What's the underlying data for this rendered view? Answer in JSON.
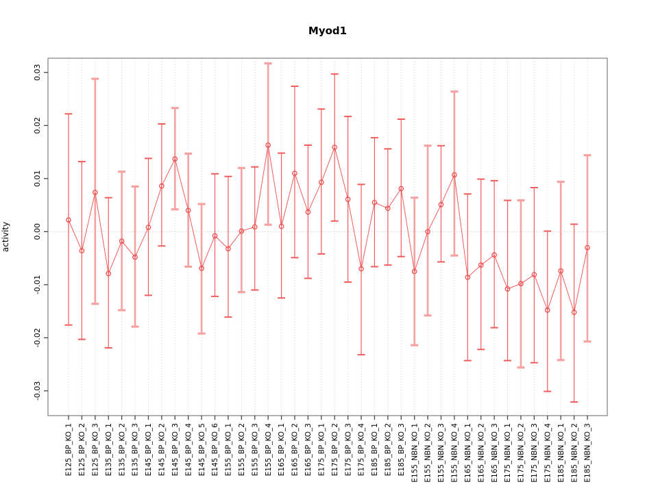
{
  "title": "Myod1",
  "y_axis_label": "activity",
  "chart_data": {
    "type": "line",
    "title": "Myod1",
    "xlabel": "",
    "ylabel": "activity",
    "ylim": [
      -0.0345,
      0.0327
    ],
    "yticks": [
      0.03,
      0.02,
      0.01,
      0.0,
      -0.01,
      -0.02,
      -0.03
    ],
    "ytick_labels": [
      "0.03",
      "0.02",
      "0.01",
      "0.00",
      "-0.01",
      "-0.02",
      "-0.03"
    ],
    "grid": "dotted vertical line at every category; dotted horizontal line at y=0 only",
    "legend_position": "none",
    "marker": "open-circle",
    "categories": [
      "E125_BP_KO_1",
      "E125_BP_KO_2",
      "E125_BP_KO_3",
      "E135_BP_KO_1",
      "E135_BP_KO_2",
      "E135_BP_KO_3",
      "E145_BP_KO_1",
      "E145_BP_KO_2",
      "E145_BP_KO_3",
      "E145_BP_KO_4",
      "E145_BP_KO_5",
      "E145_BP_KO_6",
      "E155_BP_KO_1",
      "E155_BP_KO_2",
      "E155_BP_KO_3",
      "E155_BP_KO_4",
      "E165_BP_KO_1",
      "E165_BP_KO_2",
      "E165_BP_KO_3",
      "E175_BP_KO_1",
      "E175_BP_KO_2",
      "E175_BP_KO_3",
      "E175_BP_KO_4",
      "E185_BP_KO_1",
      "E185_BP_KO_2",
      "E185_BP_KO_3",
      "E155_NBN_KO_1",
      "E155_NBN_KO_2",
      "E155_NBN_KO_3",
      "E155_NBN_KO_4",
      "E165_NBN_KO_1",
      "E165_NBN_KO_2",
      "E165_NBN_KO_3",
      "E175_NBN_KO_1",
      "E175_NBN_KO_2",
      "E175_NBN_KO_3",
      "E175_NBN_KO_4",
      "E185_NBN_KO_1",
      "E185_NBN_KO_2",
      "E185_NBN_KO_3"
    ],
    "series": [
      {
        "name": "activity",
        "values": [
          0.0022,
          -0.0036,
          0.0074,
          -0.0079,
          -0.0018,
          -0.0048,
          0.0008,
          0.0086,
          0.0137,
          0.004,
          -0.0069,
          -0.0008,
          -0.0032,
          0.0001,
          0.0009,
          0.0163,
          0.001,
          0.011,
          0.0037,
          0.0093,
          0.0159,
          0.0061,
          -0.007,
          0.0055,
          0.0044,
          0.0081,
          -0.0075,
          0.0,
          0.0051,
          0.0107,
          -0.0086,
          -0.0063,
          -0.0044,
          -0.0108,
          -0.0098,
          -0.0081,
          -0.0148,
          -0.0074,
          -0.0152,
          -0.003
        ],
        "lower": [
          -0.0176,
          -0.0203,
          -0.0136,
          -0.0219,
          -0.0148,
          -0.0179,
          -0.012,
          -0.0027,
          0.0042,
          -0.0066,
          -0.0192,
          -0.0122,
          -0.0161,
          -0.0114,
          -0.011,
          0.0013,
          -0.0125,
          -0.0049,
          -0.0088,
          -0.0042,
          0.002,
          -0.0095,
          -0.0232,
          -0.0066,
          -0.0063,
          -0.0047,
          -0.0214,
          -0.0158,
          -0.0057,
          -0.0045,
          -0.0243,
          -0.0222,
          -0.0181,
          -0.0243,
          -0.0256,
          -0.0247,
          -0.0301,
          -0.0242,
          -0.0321,
          -0.0207
        ],
        "upper": [
          0.0222,
          0.0132,
          0.0288,
          0.0064,
          0.0113,
          0.0085,
          0.0138,
          0.0203,
          0.0233,
          0.0147,
          0.0052,
          0.0109,
          0.0104,
          0.012,
          0.0122,
          0.0317,
          0.0148,
          0.0274,
          0.0163,
          0.0231,
          0.0297,
          0.0217,
          0.0089,
          0.0177,
          0.0156,
          0.0212,
          0.0064,
          0.0162,
          0.0162,
          0.0264,
          0.0071,
          0.0099,
          0.0096,
          0.0059,
          0.0059,
          0.0083,
          0.0001,
          0.0094,
          0.0014,
          0.0144
        ]
      }
    ],
    "thick_bar_indices": [
      3,
      5,
      6,
      9,
      10,
      11,
      14,
      16,
      27,
      28,
      30,
      35,
      38,
      40
    ],
    "colors": {
      "line_red": "#f15b5b",
      "pale_bar_red": "#f5a2a2",
      "marker_red": "#ef5050",
      "grid_gray": "#dcdcdc",
      "zero_line_gray": "#c8c8c8",
      "box_gray": "#888888",
      "tick_dark": "#444444",
      "background": "#ffffff"
    }
  }
}
